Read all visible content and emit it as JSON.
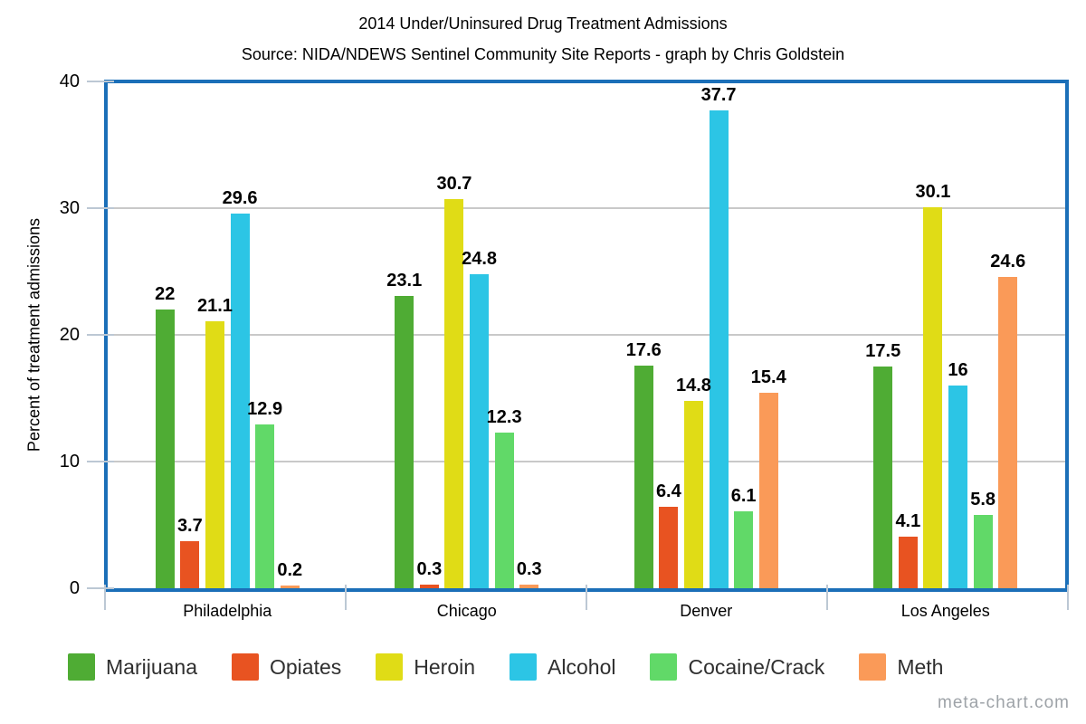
{
  "title": "2014 Under/Uninsured Drug Treatment Admissions",
  "subtitle": "Source: NIDA/NDEWS Sentinel Community Site Reports - graph by Chris Goldstein",
  "watermark": "meta-chart.com",
  "y_axis": {
    "label": "Percent of treatment admissions",
    "ticks": [
      0,
      10,
      20,
      30,
      40
    ],
    "min": 0,
    "max": 40,
    "grid_values": [
      10,
      20,
      30
    ]
  },
  "colors": {
    "plot_border": "#1B6FB8",
    "gridline": "#C9C9C9",
    "tick": "#BCC8D4",
    "value_label": "#000000",
    "legend_text": "#2f2f2f",
    "watermark_text": "#9EA3A8"
  },
  "chart_data": {
    "type": "bar",
    "title": "2014 Under/Uninsured Drug Treatment Admissions",
    "subtitle": "Source: NIDA/NDEWS Sentinel Community Site Reports - graph by Chris Goldstein",
    "xlabel": "",
    "ylabel": "Percent of treatment admissions",
    "ylim": [
      0,
      40
    ],
    "grid": true,
    "legend_position": "bottom",
    "categories": [
      "Philadelphia",
      "Chicago",
      "Denver",
      "Los Angeles"
    ],
    "series": [
      {
        "name": "Marijuana",
        "color": "#4FAC34",
        "values": [
          22,
          23.1,
          17.6,
          17.5
        ]
      },
      {
        "name": "Opiates",
        "color": "#E85321",
        "values": [
          3.7,
          0.3,
          6.4,
          4.1
        ]
      },
      {
        "name": "Heroin",
        "color": "#E0DC16",
        "values": [
          21.1,
          30.7,
          14.8,
          30.1
        ]
      },
      {
        "name": "Alcohol",
        "color": "#2CC5E5",
        "values": [
          29.6,
          24.8,
          37.7,
          16
        ]
      },
      {
        "name": "Cocaine/Crack",
        "color": "#61D968",
        "values": [
          12.9,
          12.3,
          6.1,
          5.8
        ]
      },
      {
        "name": "Meth",
        "color": "#FA9A58",
        "values": [
          0.2,
          0.3,
          15.4,
          24.6
        ]
      }
    ]
  }
}
